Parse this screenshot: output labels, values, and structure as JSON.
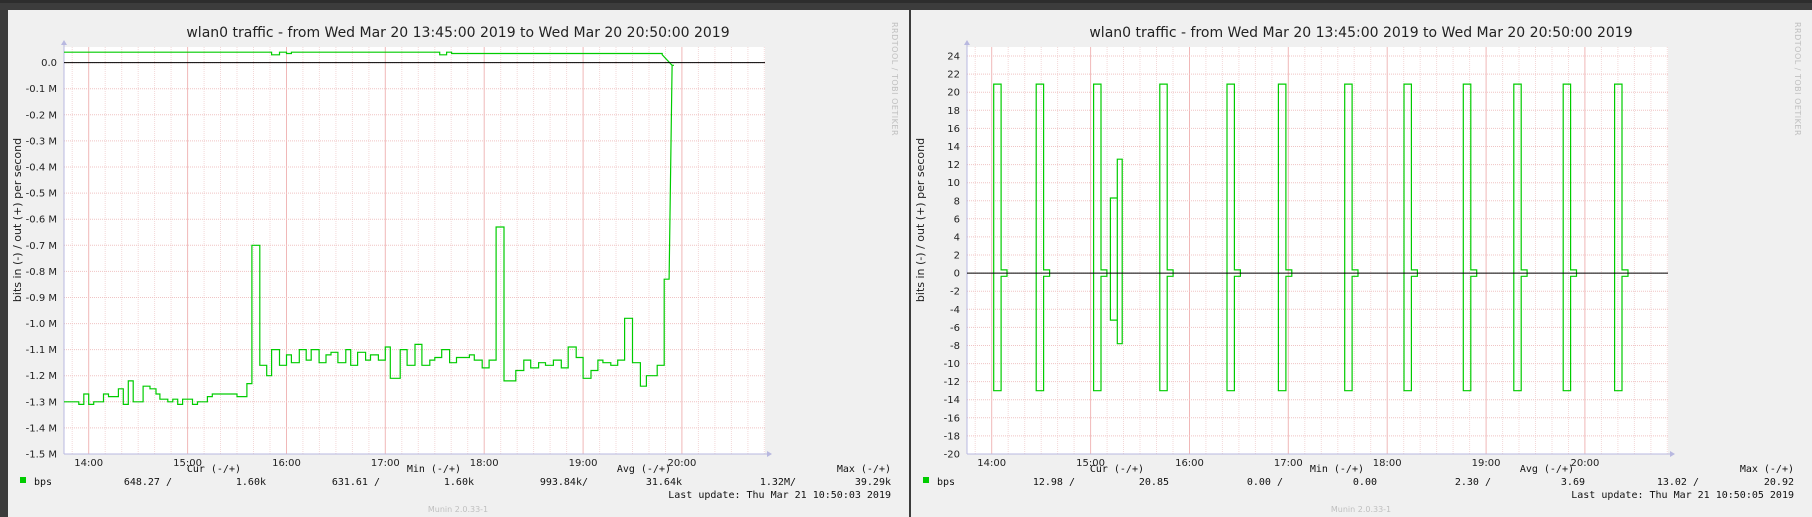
{
  "chart_data": [
    {
      "type": "line",
      "title": "wlan0 traffic - from Wed Mar 20 13:45:00 2019 to Wed Mar 20 20:50:00 2019",
      "ylabel": "bits in (-) / out (+) per second",
      "xlabel": "",
      "x_ticks": [
        "14:00",
        "15:00",
        "16:00",
        "17:00",
        "18:00",
        "19:00",
        "20:00"
      ],
      "y_ticks": [
        {
          "value": 0.0,
          "label": "0.0"
        },
        {
          "value": -0.1,
          "label": "-0.1 M"
        },
        {
          "value": -0.2,
          "label": "-0.2 M"
        },
        {
          "value": -0.3,
          "label": "-0.3 M"
        },
        {
          "value": -0.4,
          "label": "-0.4 M"
        },
        {
          "value": -0.5,
          "label": "-0.5 M"
        },
        {
          "value": -0.6,
          "label": "-0.6 M"
        },
        {
          "value": -0.7,
          "label": "-0.7 M"
        },
        {
          "value": -0.8,
          "label": "-0.8 M"
        },
        {
          "value": -0.9,
          "label": "-0.9 M"
        },
        {
          "value": -1.0,
          "label": "-1.0 M"
        },
        {
          "value": -1.1,
          "label": "-1.1 M"
        },
        {
          "value": -1.2,
          "label": "-1.2 M"
        },
        {
          "value": -1.3,
          "label": "-1.3 M"
        },
        {
          "value": -1.4,
          "label": "-1.4 M"
        },
        {
          "value": -1.5,
          "label": "-1.5 M"
        }
      ],
      "xlim_hours": [
        13.75,
        20.84
      ],
      "ylim": [
        -1.5,
        0.06
      ],
      "grid": true,
      "legend": "bottom-left",
      "series": [
        {
          "name": "bps",
          "color": "#00cc00",
          "in_hours": [
            13.75,
            13.9,
            13.95,
            14.0,
            14.05,
            14.15,
            14.2,
            14.3,
            14.35,
            14.4,
            14.45,
            14.55,
            14.62,
            14.68,
            14.72,
            14.8,
            14.85,
            14.9,
            14.95,
            15.05,
            15.1,
            15.2,
            15.25,
            15.3,
            15.5,
            15.6,
            15.65,
            15.73,
            15.8,
            15.85,
            15.93,
            16.0,
            16.05,
            16.13,
            16.2,
            16.25,
            16.33,
            16.4,
            16.45,
            16.52,
            16.6,
            16.65,
            16.72,
            16.8,
            16.85,
            16.93,
            17.0,
            17.05,
            17.15,
            17.22,
            17.3,
            17.37,
            17.45,
            17.5,
            17.57,
            17.65,
            17.72,
            17.78,
            17.85,
            17.9,
            17.98,
            18.05,
            18.12,
            18.2,
            18.25,
            18.32,
            18.4,
            18.47,
            18.55,
            18.62,
            18.7,
            18.78,
            18.85,
            18.93,
            19.0,
            19.08,
            19.15,
            19.2,
            19.28,
            19.35,
            19.42,
            19.5,
            19.58,
            19.64,
            19.75,
            19.82
          ],
          "in_values": [
            -1.3,
            -1.31,
            -1.27,
            -1.31,
            -1.3,
            -1.27,
            -1.28,
            -1.25,
            -1.31,
            -1.22,
            -1.3,
            -1.24,
            -1.25,
            -1.27,
            -1.29,
            -1.3,
            -1.29,
            -1.31,
            -1.29,
            -1.31,
            -1.3,
            -1.28,
            -1.27,
            -1.27,
            -1.28,
            -1.23,
            -0.7,
            -1.16,
            -1.2,
            -1.1,
            -1.16,
            -1.12,
            -1.15,
            -1.1,
            -1.14,
            -1.1,
            -1.15,
            -1.12,
            -1.11,
            -1.15,
            -1.1,
            -1.16,
            -1.11,
            -1.14,
            -1.12,
            -1.14,
            -1.09,
            -1.21,
            -1.1,
            -1.16,
            -1.08,
            -1.16,
            -1.14,
            -1.13,
            -1.1,
            -1.15,
            -1.13,
            -1.13,
            -1.12,
            -1.14,
            -1.17,
            -1.14,
            -0.63,
            -1.22,
            -1.22,
            -1.18,
            -1.14,
            -1.17,
            -1.15,
            -1.16,
            -1.14,
            -1.17,
            -1.09,
            -1.13,
            -1.21,
            -1.18,
            -1.14,
            -1.15,
            -1.16,
            -1.14,
            -0.98,
            -1.15,
            -1.24,
            -1.2,
            -1.16,
            -0.83
          ],
          "out_hours": [
            13.75,
            15.8,
            15.85,
            15.93,
            16.0,
            16.05,
            17.5,
            17.55,
            17.62,
            17.67,
            19.75,
            19.8,
            19.9
          ],
          "out_values": [
            0.04,
            0.04,
            0.03,
            0.04,
            0.035,
            0.04,
            0.04,
            0.03,
            0.04,
            0.035,
            0.035,
            0.03,
            -0.01
          ]
        }
      ],
      "legend_entry": "bps",
      "summary": {
        "cur_header": "Cur (-/+)",
        "min_header": "Min (-/+)",
        "avg_header": "Avg (-/+)",
        "max_header": "Max (-/+)",
        "cur": [
          "648.27 /",
          "1.60k"
        ],
        "min": [
          "631.61 /",
          "1.60k"
        ],
        "avg": [
          "993.84k/",
          "31.64k"
        ],
        "max": [
          "1.32M/",
          "39.29k"
        ]
      },
      "last_update": "Last update:  Thu Mar 21 10:50:03 2019",
      "side_tag": "RRDTOOL / TOBI OETIKER",
      "footer": "Munin 2.0.33-1"
    },
    {
      "type": "line",
      "title": "wlan0 traffic - from Wed Mar 20 13:45:00 2019 to Wed Mar 20 20:50:00 2019",
      "ylabel": "bits in (-) / out (+) per second",
      "xlabel": "",
      "x_ticks": [
        "14:00",
        "15:00",
        "16:00",
        "17:00",
        "18:00",
        "19:00",
        "20:00"
      ],
      "y_ticks": [
        24,
        22,
        20,
        18,
        16,
        14,
        12,
        10,
        8,
        6,
        4,
        2,
        0,
        -2,
        -4,
        -6,
        -8,
        -10,
        -12,
        -14,
        -16,
        -18,
        -20
      ],
      "xlim_hours": [
        13.75,
        20.84
      ],
      "ylim": [
        -20,
        25
      ],
      "grid": true,
      "legend": "bottom-left",
      "series": [
        {
          "name": "bps",
          "color": "#00cc00",
          "spikes_hours": [
            14.02,
            14.45,
            15.03,
            15.7,
            16.38,
            16.9,
            17.57,
            18.17,
            18.77,
            19.28,
            19.78,
            20.3
          ],
          "spike_out": 20.9,
          "spike_in": -13.0,
          "extra_out": [
            {
              "h0": 15.2,
              "h1": 15.27,
              "v": 8.3
            },
            {
              "h0": 15.27,
              "h1": 15.32,
              "v": 12.6
            }
          ],
          "extra_in": [
            {
              "h0": 15.2,
              "h1": 15.27,
              "v": -5.2
            },
            {
              "h0": 15.27,
              "h1": 15.32,
              "v": -7.8
            }
          ]
        }
      ],
      "legend_entry": "bps",
      "summary": {
        "cur_header": "Cur (-/+)",
        "min_header": "Min (-/+)",
        "avg_header": "Avg (-/+)",
        "max_header": "Max (-/+)",
        "cur": [
          "12.98 /",
          "20.85"
        ],
        "min": [
          "0.00 /",
          "0.00"
        ],
        "avg": [
          "2.30 /",
          "3.69"
        ],
        "max": [
          "13.02 /",
          "20.92"
        ]
      },
      "last_update": "Last update:  Thu Mar 21 10:50:05 2019",
      "side_tag": "RRDTOOL / TOBI OETIKER",
      "footer": "Munin 2.0.33-1"
    }
  ]
}
